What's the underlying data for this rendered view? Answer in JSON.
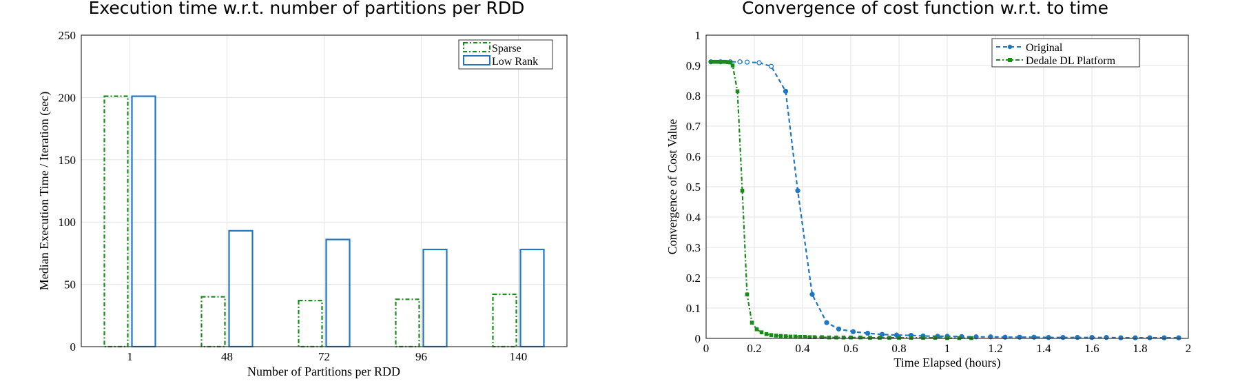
{
  "chart_data": [
    {
      "type": "bar",
      "title": "Execution time w.r.t. number of partitions per RDD",
      "xlabel": "Number of Partitions per RDD",
      "ylabel": "Median Execution Time / Iteration (sec)",
      "ylim": [
        0,
        250
      ],
      "yticks": [
        0,
        50,
        100,
        150,
        200,
        250
      ],
      "categories": [
        "1",
        "48",
        "72",
        "96",
        "140"
      ],
      "grid": true,
      "legend_position": "top-right",
      "series": [
        {
          "name": "Sparse",
          "values": [
            201,
            40,
            37,
            38,
            42
          ],
          "color": "#1a8a1a",
          "style": "dash-dot outline"
        },
        {
          "name": "Low Rank",
          "values": [
            201,
            93,
            86,
            78,
            78
          ],
          "color": "#1f77c4",
          "style": "solid outline"
        }
      ]
    },
    {
      "type": "line",
      "title": "Convergence of cost function w.r.t. to time",
      "xlabel": "Time Elapsed (hours)",
      "ylabel": "Convergence of Cost Value",
      "xlim": [
        0,
        2
      ],
      "ylim": [
        0,
        1
      ],
      "xticks": [
        "0",
        "0.2",
        "0.4",
        "0.6",
        "0.8",
        "1",
        "1.2",
        "1.4",
        "1.6",
        "1.8",
        "2"
      ],
      "yticks": [
        "0",
        "0.1",
        "0.2",
        "0.3",
        "0.4",
        "0.5",
        "0.6",
        "0.7",
        "0.8",
        "0.9",
        "1"
      ],
      "grid": true,
      "legend_position": "top-right",
      "series": [
        {
          "name": "Original",
          "color": "#1f77c4",
          "style": "dashed, circle markers",
          "x": [
            0.02,
            0.06,
            0.1,
            0.14,
            0.17,
            0.22,
            0.27,
            0.33,
            0.38,
            0.44,
            0.5,
            0.55,
            0.61,
            0.67,
            0.73,
            0.79,
            0.85,
            0.9,
            0.96,
            1.0,
            1.06,
            1.12,
            1.18,
            1.24,
            1.3,
            1.36,
            1.42,
            1.48,
            1.54,
            1.6,
            1.66,
            1.72,
            1.78,
            1.84,
            1.9,
            1.96
          ],
          "y": [
            0.912,
            0.912,
            0.912,
            0.912,
            0.911,
            0.909,
            0.897,
            0.815,
            0.487,
            0.145,
            0.052,
            0.031,
            0.022,
            0.017,
            0.013,
            0.011,
            0.01,
            0.008,
            0.007,
            0.007,
            0.006,
            0.005,
            0.005,
            0.004,
            0.004,
            0.004,
            0.003,
            0.003,
            0.003,
            0.003,
            0.003,
            0.002,
            0.002,
            0.002,
            0.002,
            0.002
          ]
        },
        {
          "name": "Dedale DL Platform",
          "color": "#1a8a1a",
          "style": "dash-dot, square markers",
          "x": [
            0.02,
            0.03,
            0.04,
            0.05,
            0.06,
            0.07,
            0.08,
            0.09,
            0.1,
            0.11,
            0.13,
            0.15,
            0.17,
            0.19,
            0.21,
            0.23,
            0.25,
            0.27,
            0.29,
            0.31,
            0.33,
            0.35,
            0.37,
            0.39,
            0.41,
            0.43,
            0.45,
            0.48,
            0.51,
            0.54,
            0.57,
            0.6,
            0.64,
            0.68,
            0.72,
            0.76,
            0.8,
            0.85,
            0.9,
            0.95,
            1.0,
            1.05,
            1.1
          ],
          "y": [
            0.912,
            0.912,
            0.912,
            0.912,
            0.912,
            0.912,
            0.912,
            0.911,
            0.91,
            0.9,
            0.815,
            0.487,
            0.145,
            0.052,
            0.03,
            0.02,
            0.014,
            0.011,
            0.009,
            0.008,
            0.007,
            0.006,
            0.006,
            0.005,
            0.005,
            0.004,
            0.004,
            0.004,
            0.003,
            0.003,
            0.003,
            0.003,
            0.003,
            0.002,
            0.002,
            0.002,
            0.002,
            0.002,
            0.002,
            0.002,
            0.001,
            0.001,
            0.001
          ]
        }
      ]
    }
  ]
}
